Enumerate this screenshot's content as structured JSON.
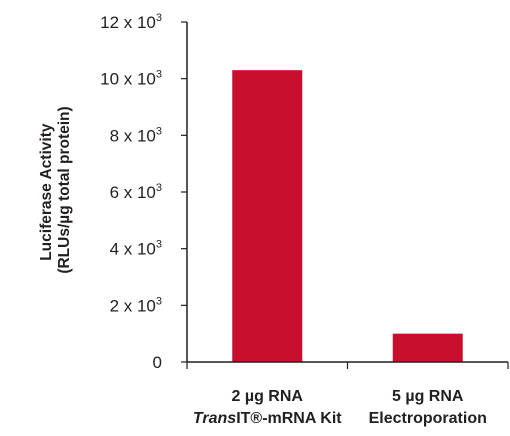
{
  "chart_data": {
    "type": "bar",
    "categories": [
      [
        "2 µg RNA",
        "TransIT®-mRNA Kit"
      ],
      [
        "5 µg RNA",
        "Electroporation"
      ]
    ],
    "values": [
      10300,
      1000
    ],
    "ylabel": [
      "Luciferase Activity",
      "(RLUs/µg total protein)"
    ],
    "ylim": [
      0,
      12000
    ],
    "yticks": [
      0,
      2000,
      4000,
      6000,
      8000,
      10000,
      12000
    ],
    "ytick_labels": [
      {
        "base": "0",
        "exp": ""
      },
      {
        "base": "2 x 10",
        "exp": "3"
      },
      {
        "base": "4 x 10",
        "exp": "3"
      },
      {
        "base": "6 x 10",
        "exp": "3"
      },
      {
        "base": "8 x 10",
        "exp": "3"
      },
      {
        "base": "10 x 10",
        "exp": "3"
      },
      {
        "base": "12 x 10",
        "exp": "3"
      }
    ],
    "grid": false,
    "bar_color": "#c8102e",
    "axis_color": "#231f20"
  }
}
